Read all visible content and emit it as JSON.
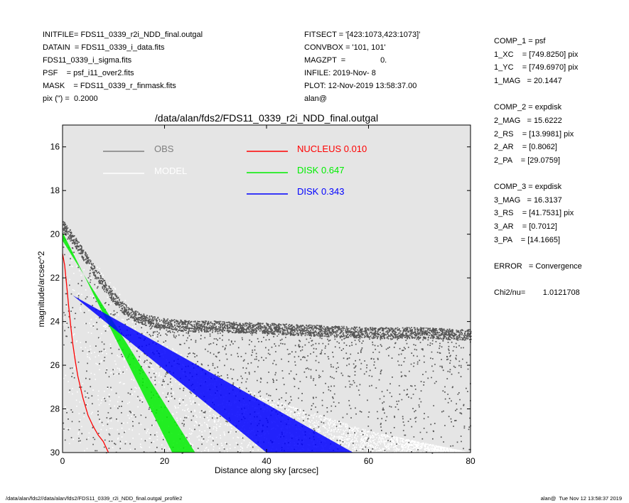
{
  "header_left": [
    "INITFILE= FDS11_0339_r2i_NDD_final.outgal",
    "DATAIN  = FDS11_0339_i_data.fits",
    "FDS11_0339_i_sigma.fits",
    "PSF    = psf_i11_over2.fits",
    "MASK    = FDS11_0339_r_finmask.fits",
    "pix (\") =  0.2000"
  ],
  "header_mid": [
    "FITSECT = '[423:1073,423:1073]'",
    "CONVBOX = '101, 101'",
    "MAGZPT  =                0.",
    "INFILE: 2019-Nov- 8",
    "PLOT: 12-Nov-2019 13:58:37.00",
    "alan@"
  ],
  "right_params": [
    "COMP_1 = psf",
    "1_XC    = [749.8250] pix",
    "1_YC    = [749.6970] pix",
    "1_MAG   = 20.1447",
    "",
    "COMP_2 = expdisk",
    "2_MAG   = 15.6222",
    "2_RS    = [13.9981] pix",
    "2_AR    = [0.8062]",
    "2_PA    = [29.0759]",
    "",
    "COMP_3 = expdisk",
    "3_MAG   = 16.3137",
    "3_RS    = [41.7531] pix",
    "3_AR    = [0.7012]",
    "3_PA    = [14.1665]",
    "",
    "ERROR   = Convergence",
    "",
    "Chi2/nu=        1.0121708"
  ],
  "footer_left": "/data/alan/fds2//data/alan/fds2/FDS11_0339_r2i_NDD_final.outgal_profile2",
  "footer_right": "alan@  Tue Nov 12 13:58:37 2019",
  "chart_data": {
    "type": "scatter",
    "title": "/data/alan/fds2/FDS11_0339_r2i_NDD_final.outgal",
    "xlabel": "Distance along sky [arcsec]",
    "ylabel": "magnitude/arcsec^2",
    "xlim": [
      0,
      80
    ],
    "ylim": [
      30,
      15
    ],
    "y_inverted": true,
    "x_ticks": [
      0,
      20,
      40,
      60,
      80
    ],
    "y_ticks": [
      16,
      18,
      20,
      22,
      24,
      26,
      28,
      30
    ],
    "background": "#e5e5e5",
    "grid": false,
    "legend_left": [
      {
        "label": "OBS",
        "color": "#7f7f7f"
      },
      {
        "label": "MODEL",
        "color": "#ffffff"
      }
    ],
    "legend_right": [
      {
        "label": "NUCLEUS",
        "fraction": "0.010",
        "color": "#ff0000"
      },
      {
        "label": "DISK",
        "fraction": "0.647",
        "color": "#00ee00"
      },
      {
        "label": "DISK",
        "fraction": "0.343",
        "color": "#0000ff"
      }
    ],
    "series": [
      {
        "name": "OBS",
        "kind": "points",
        "color": "#555555",
        "profile": {
          "x": [
            0,
            2,
            4,
            6,
            8,
            10,
            12,
            14,
            16,
            20,
            25,
            30,
            40,
            50,
            60,
            70,
            80
          ],
          "y": [
            19.6,
            20.2,
            20.9,
            21.6,
            22.3,
            22.9,
            23.4,
            23.7,
            23.9,
            24.1,
            24.2,
            24.2,
            24.3,
            24.4,
            24.5,
            24.5,
            24.6
          ]
        },
        "scatter_to": 30.0
      },
      {
        "name": "MODEL",
        "kind": "points",
        "color": "#ffffff",
        "profile": {
          "x": [
            0,
            5,
            10,
            15,
            20,
            30,
            40,
            60,
            80
          ],
          "y": [
            19.7,
            20.8,
            22.4,
            23.8,
            25.0,
            26.5,
            27.5,
            29.0,
            30.0
          ]
        },
        "scatter_to": 30.0
      },
      {
        "name": "NUCLEUS",
        "kind": "line",
        "color": "#ff0000",
        "x": [
          0,
          0.4,
          0.8,
          1.2,
          1.6,
          2.0,
          2.5,
          3.0,
          4.0,
          5.0,
          6.0,
          7.0,
          8.0,
          9.0
        ],
        "y": [
          20.9,
          21.4,
          22.3,
          23.3,
          24.2,
          25.0,
          25.8,
          26.5,
          27.5,
          28.3,
          28.8,
          29.2,
          29.5,
          30.0
        ]
      },
      {
        "name": "DISK 0.647",
        "kind": "band",
        "color": "#00ee00",
        "x": [
          0,
          26
        ],
        "y_upper": [
          19.9,
          30.0
        ],
        "y_lower": [
          20.3,
          30.0
        ],
        "upper_end_x": 21.5
      },
      {
        "name": "DISK 0.343",
        "kind": "band",
        "color": "#0000ff",
        "x": [
          2,
          57
        ],
        "y_upper": [
          22.8,
          30.0
        ],
        "y_lower": [
          22.8,
          30.0
        ],
        "upper_end_x": 40
      }
    ]
  }
}
